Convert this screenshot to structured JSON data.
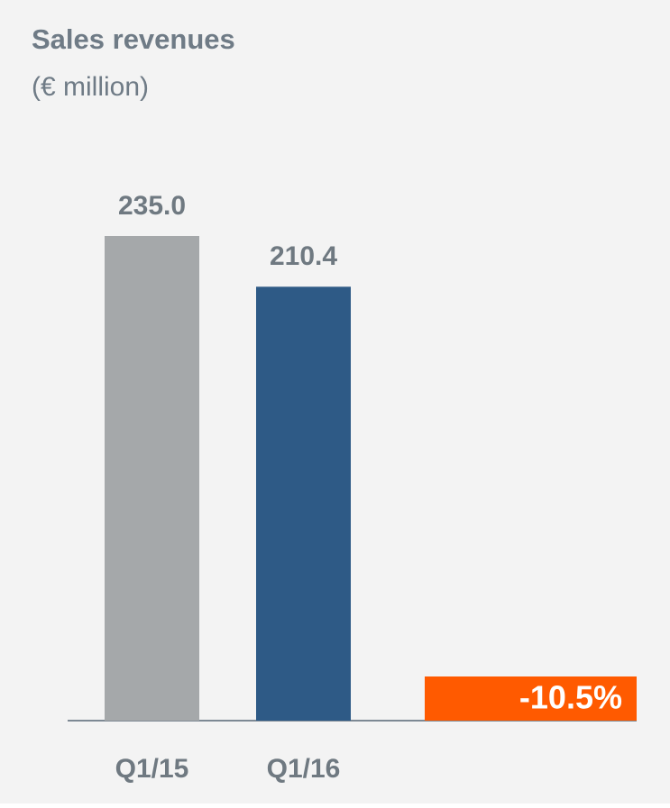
{
  "chart_data": {
    "type": "bar",
    "title": "Sales revenues",
    "subtitle": "(€ million)",
    "categories": [
      "Q1/15",
      "Q1/16"
    ],
    "values": [
      235.0,
      210.4
    ],
    "value_labels": [
      "235.0",
      "210.4"
    ],
    "colors": [
      "#a5a8aa",
      "#2e5a86"
    ],
    "annotation": "-10.5%",
    "annotation_color": "#ff5a00"
  }
}
